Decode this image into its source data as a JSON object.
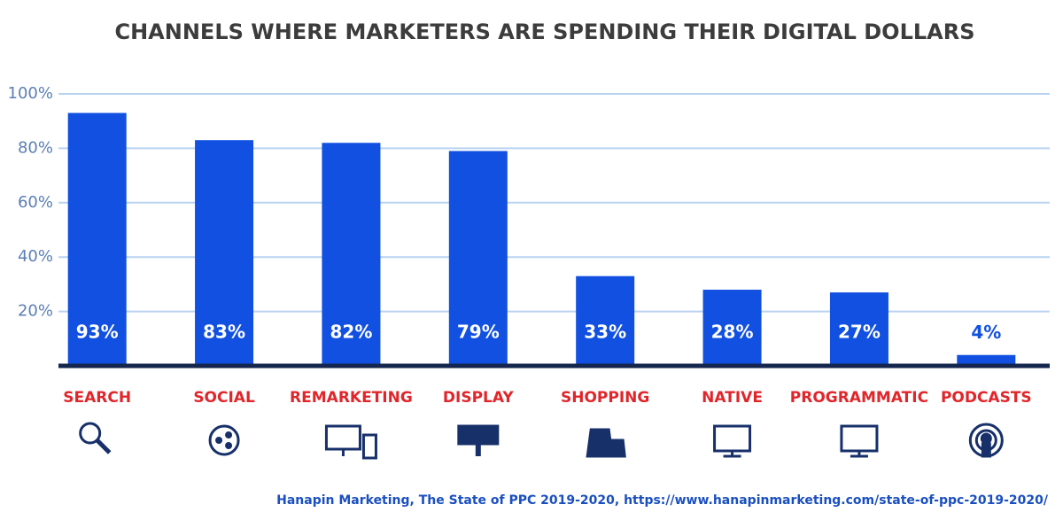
{
  "chart_data": {
    "type": "bar",
    "title": "CHANNELS WHERE MARKETERS ARE SPENDING THEIR DIGITAL DOLLARS",
    "categories": [
      "SEARCH",
      "SOCIAL",
      "REMARKETING",
      "DISPLAY",
      "SHOPPING",
      "NATIVE",
      "PROGRAMMATIC",
      "PODCASTS"
    ],
    "values": [
      93,
      83,
      82,
      79,
      33,
      28,
      27,
      4
    ],
    "value_labels": [
      "93%",
      "83%",
      "82%",
      "79%",
      "33%",
      "28%",
      "27%",
      "4%"
    ],
    "color": "#1150e0",
    "ylim": [
      0,
      100
    ],
    "yticks": [
      {
        "value": 20,
        "label": "20%"
      },
      {
        "value": 40,
        "label": "40%"
      },
      {
        "value": 60,
        "label": "60%"
      },
      {
        "value": 80,
        "label": "80%"
      },
      {
        "value": 100,
        "label": "100%"
      }
    ],
    "grid": true,
    "source": "Hanapin Marketing, The State of PPC 2019-2020, https://www.hanapinmarketing.com/state-of-ppc-2019-2020/"
  }
}
